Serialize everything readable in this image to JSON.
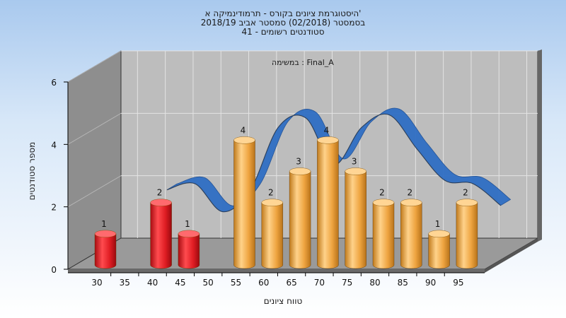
{
  "titles": [
    "היסטוגרמת ציונים בקורס - תרמודינמיקה א'",
    "בסמסטר  (02/2018)  סמסטר אביב 2018/19",
    "41 - סטודנטים רשומים"
  ],
  "annotation": "במשימה : Final_A",
  "chart_data": {
    "type": "bar",
    "title": "היסטוגרמת ציונים בקורס - תרמודינמיקה א'",
    "subtitle": [
      "בסמסטר  (02/2018)  סמסטר אביב 2018/19",
      "41 - סטודנטים רשומים"
    ],
    "xlabel": "טווח ציונים",
    "ylabel": "מספר סטודנטים",
    "ylim": [
      0,
      6
    ],
    "yticks": [
      0,
      2,
      4,
      6
    ],
    "x_tick_labels": [
      "30",
      "35",
      "40",
      "45",
      "50",
      "55",
      "60",
      "65",
      "70",
      "75",
      "80",
      "85",
      "90",
      "95"
    ],
    "bars": [
      {
        "x": 30,
        "value": 1,
        "color": "#e8242b"
      },
      {
        "x": 40,
        "value": 2,
        "color": "#e8242b"
      },
      {
        "x": 45,
        "value": 1,
        "color": "#e8242b"
      },
      {
        "x": 55,
        "value": 4,
        "color": "#f0a13a"
      },
      {
        "x": 60,
        "value": 2,
        "color": "#f0a13a"
      },
      {
        "x": 65,
        "value": 3,
        "color": "#f0a13a"
      },
      {
        "x": 70,
        "value": 4,
        "color": "#f0a13a"
      },
      {
        "x": 75,
        "value": 3,
        "color": "#f0a13a"
      },
      {
        "x": 80,
        "value": 2,
        "color": "#f0a13a"
      },
      {
        "x": 85,
        "value": 2,
        "color": "#f0a13a"
      },
      {
        "x": 90,
        "value": 1,
        "color": "#f0a13a"
      },
      {
        "x": 95,
        "value": 2,
        "color": "#f0a13a"
      }
    ],
    "ribbon": {
      "color": "#2f6fc4",
      "x": [
        37.5,
        42.5,
        47.5,
        52.5,
        57.5,
        62.5,
        67.5,
        72.5,
        77.5,
        82.5,
        87.5,
        92.5,
        97.5
      ],
      "values": [
        2,
        2.2,
        1.3,
        2,
        4,
        4.3,
        2.8,
        4,
        4.4,
        3.3,
        2.3,
        2.2,
        1.5
      ]
    },
    "grid": true,
    "legend": "none"
  }
}
